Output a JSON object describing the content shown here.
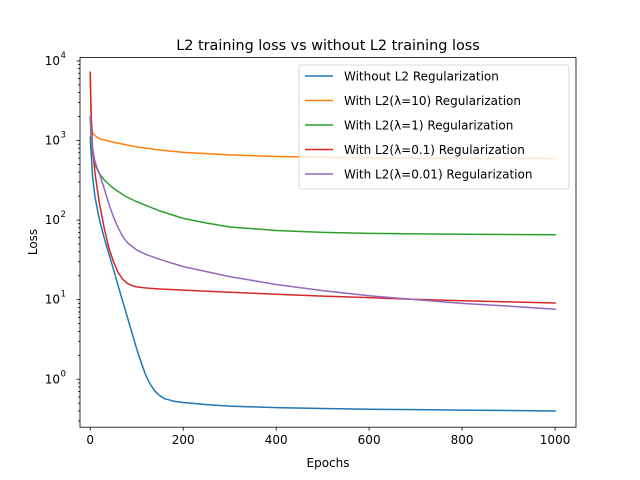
{
  "chart_data": {
    "type": "line",
    "title": "L2 training loss vs without L2 training loss",
    "xlabel": "Epochs",
    "ylabel": "Loss",
    "xlim": [
      -22,
      1045
    ],
    "ylim": [
      0.25,
      11000
    ],
    "yscale": "log",
    "grid": false,
    "legend_position": "top-right",
    "x_ticks": [
      0,
      200,
      400,
      600,
      800,
      1000
    ],
    "x_tick_labels": [
      "0",
      "200",
      "400",
      "600",
      "800",
      "1000"
    ],
    "y_ticks": [
      1,
      10,
      100,
      1000,
      10000
    ],
    "y_tick_labels": [
      {
        "base": "10",
        "exp": "0"
      },
      {
        "base": "10",
        "exp": "1"
      },
      {
        "base": "10",
        "exp": "2"
      },
      {
        "base": "10",
        "exp": "3"
      },
      {
        "base": "10",
        "exp": "4"
      }
    ],
    "series": [
      {
        "name": "Without L2 Regularization",
        "color": "#1f77b4",
        "x": [
          0,
          2,
          5,
          10,
          15,
          20,
          30,
          40,
          50,
          60,
          70,
          80,
          90,
          100,
          110,
          120,
          130,
          140,
          150,
          160,
          170,
          180,
          200,
          250,
          300,
          400,
          500,
          600,
          700,
          800,
          900,
          1000
        ],
        "y": [
          1100,
          700,
          350,
          200,
          140,
          100,
          60,
          38,
          24,
          15,
          9.5,
          6.0,
          3.8,
          2.4,
          1.6,
          1.1,
          0.85,
          0.7,
          0.62,
          0.57,
          0.55,
          0.53,
          0.51,
          0.48,
          0.46,
          0.44,
          0.43,
          0.42,
          0.415,
          0.41,
          0.405,
          0.4
        ]
      },
      {
        "name": "With L2(λ=10) Regularization",
        "color": "#ff7f0e",
        "x": [
          0,
          2,
          5,
          8,
          10,
          20,
          50,
          100,
          150,
          200,
          300,
          400,
          500,
          600,
          700,
          800,
          900,
          1000
        ],
        "y": [
          7000,
          1800,
          1250,
          1180,
          1150,
          1050,
          950,
          830,
          760,
          710,
          660,
          630,
          615,
          605,
          600,
          598,
          597,
          595
        ]
      },
      {
        "name": "With L2(λ=1) Regularization",
        "color": "#2ca02c",
        "x": [
          0,
          2,
          5,
          10,
          20,
          30,
          50,
          75,
          100,
          150,
          200,
          250,
          300,
          400,
          500,
          600,
          700,
          800,
          900,
          1000
        ],
        "y": [
          2000,
          1000,
          700,
          500,
          380,
          320,
          250,
          200,
          170,
          130,
          105,
          92,
          82,
          74,
          70,
          68,
          67,
          66.5,
          66,
          65.5
        ]
      },
      {
        "name": "With L2(λ=0.1) Regularization",
        "color": "#d62728",
        "x": [
          0,
          2,
          5,
          10,
          15,
          20,
          30,
          40,
          50,
          60,
          70,
          80,
          90,
          100,
          120,
          150,
          200,
          300,
          400,
          500,
          600,
          700,
          800,
          900,
          1000
        ],
        "y": [
          7200,
          2200,
          800,
          400,
          250,
          160,
          80,
          45,
          30,
          22,
          18,
          16,
          15,
          14.5,
          14,
          13.6,
          13.2,
          12.4,
          11.7,
          11.1,
          10.6,
          10.1,
          9.7,
          9.4,
          9.1
        ]
      },
      {
        "name": "With L2(λ=0.01) Regularization",
        "color": "#9467bd",
        "x": [
          0,
          2,
          5,
          10,
          15,
          20,
          30,
          40,
          50,
          60,
          70,
          80,
          100,
          120,
          150,
          200,
          300,
          400,
          500,
          600,
          700,
          800,
          900,
          1000
        ],
        "y": [
          2000,
          1300,
          800,
          550,
          450,
          380,
          250,
          160,
          110,
          80,
          62,
          52,
          42,
          37,
          32,
          26,
          19.5,
          15.5,
          13,
          11.2,
          10,
          9,
          8.3,
          7.6
        ]
      }
    ]
  }
}
